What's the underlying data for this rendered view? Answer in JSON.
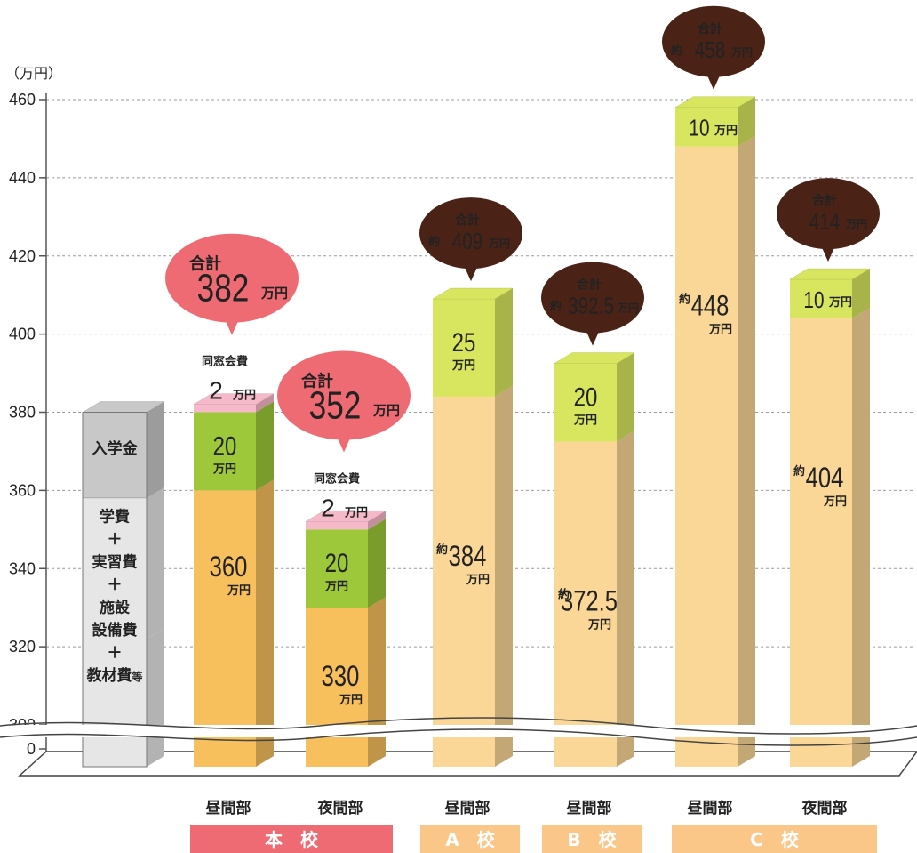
{
  "chart_data": {
    "type": "bar",
    "stacked": true,
    "y_unit": "（万円）",
    "yticks": [
      "460",
      "440",
      "420",
      "400",
      "380",
      "360",
      "340",
      "320",
      "300",
      "0"
    ],
    "ylim": [
      300,
      460
    ],
    "axis_break": true,
    "grid": true,
    "legend_bar": {
      "top_label": "入学金",
      "bottom_label_lines": [
        "学費",
        "＋",
        "実習費",
        "＋",
        "施設",
        "設備費",
        "＋",
        "教材費"
      ],
      "bottom_label_suffix": "等",
      "top_color": "#c8c8c8",
      "bottom_color": "#e6e6e6"
    },
    "note_label": "同窓会費",
    "total_word": "合計",
    "approx_prefix": "約",
    "unit_word": "万円",
    "bars": [
      {
        "category": "昼間部",
        "school": "本校",
        "base": 360,
        "base_label": "360",
        "base_approx": false,
        "fee": 20,
        "fee_label": "20",
        "alumni": 2,
        "alumni_label": "2",
        "total": 382,
        "total_label": "382",
        "total_approx": false,
        "bubble_style": "pink"
      },
      {
        "category": "夜間部",
        "school": "本校",
        "base": 330,
        "base_label": "330",
        "base_approx": false,
        "fee": 20,
        "fee_label": "20",
        "alumni": 2,
        "alumni_label": "2",
        "total": 352,
        "total_label": "352",
        "total_approx": false,
        "bubble_style": "pink"
      },
      {
        "category": "昼間部",
        "school": "A校",
        "base": 384,
        "base_label": "384",
        "base_approx": true,
        "fee": 25,
        "fee_label": "25",
        "alumni": 0,
        "total": 409,
        "total_label": "409",
        "total_approx": true,
        "bubble_style": "brown"
      },
      {
        "category": "昼間部",
        "school": "B校",
        "base": 372.5,
        "base_label": "372.5",
        "base_approx": true,
        "fee": 20,
        "fee_label": "20",
        "alumni": 0,
        "total": 392.5,
        "total_label": "392.5",
        "total_approx": true,
        "bubble_style": "brown"
      },
      {
        "category": "昼間部",
        "school": "C校",
        "base": 448,
        "base_label": "448",
        "base_approx": true,
        "fee": 10,
        "fee_label": "10",
        "alumni": 0,
        "total": 458,
        "total_label": "458",
        "total_approx": true,
        "bubble_style": "brown"
      },
      {
        "category": "夜間部",
        "school": "C校",
        "base": 404,
        "base_label": "404",
        "base_approx": true,
        "fee": 10,
        "fee_label": "10",
        "alumni": 0,
        "total": 414,
        "total_label": "414",
        "total_approx": false,
        "bubble_style": "brown"
      }
    ],
    "schools": [
      {
        "label": "本　校",
        "bars": [
          0,
          1
        ],
        "color": "#ee6b73"
      },
      {
        "label": "A　校",
        "bars": [
          2
        ],
        "color": "#fac789"
      },
      {
        "label": "B　校",
        "bars": [
          3
        ],
        "color": "#fac789"
      },
      {
        "label": "C　校",
        "bars": [
          4,
          5
        ],
        "color": "#fac789"
      }
    ],
    "colors": {
      "honko_base": "#f8bf5d",
      "honko_fee": "#9dc83a",
      "other_base": "#fad796",
      "other_fee": "#d8e55e",
      "alumni": "#f6b9c9",
      "bubble_pink": "#ee6b73",
      "bubble_pink_text": "#fff3a0",
      "bubble_brown": "#4a2316",
      "bubble_brown_text": "#ffffff"
    }
  }
}
